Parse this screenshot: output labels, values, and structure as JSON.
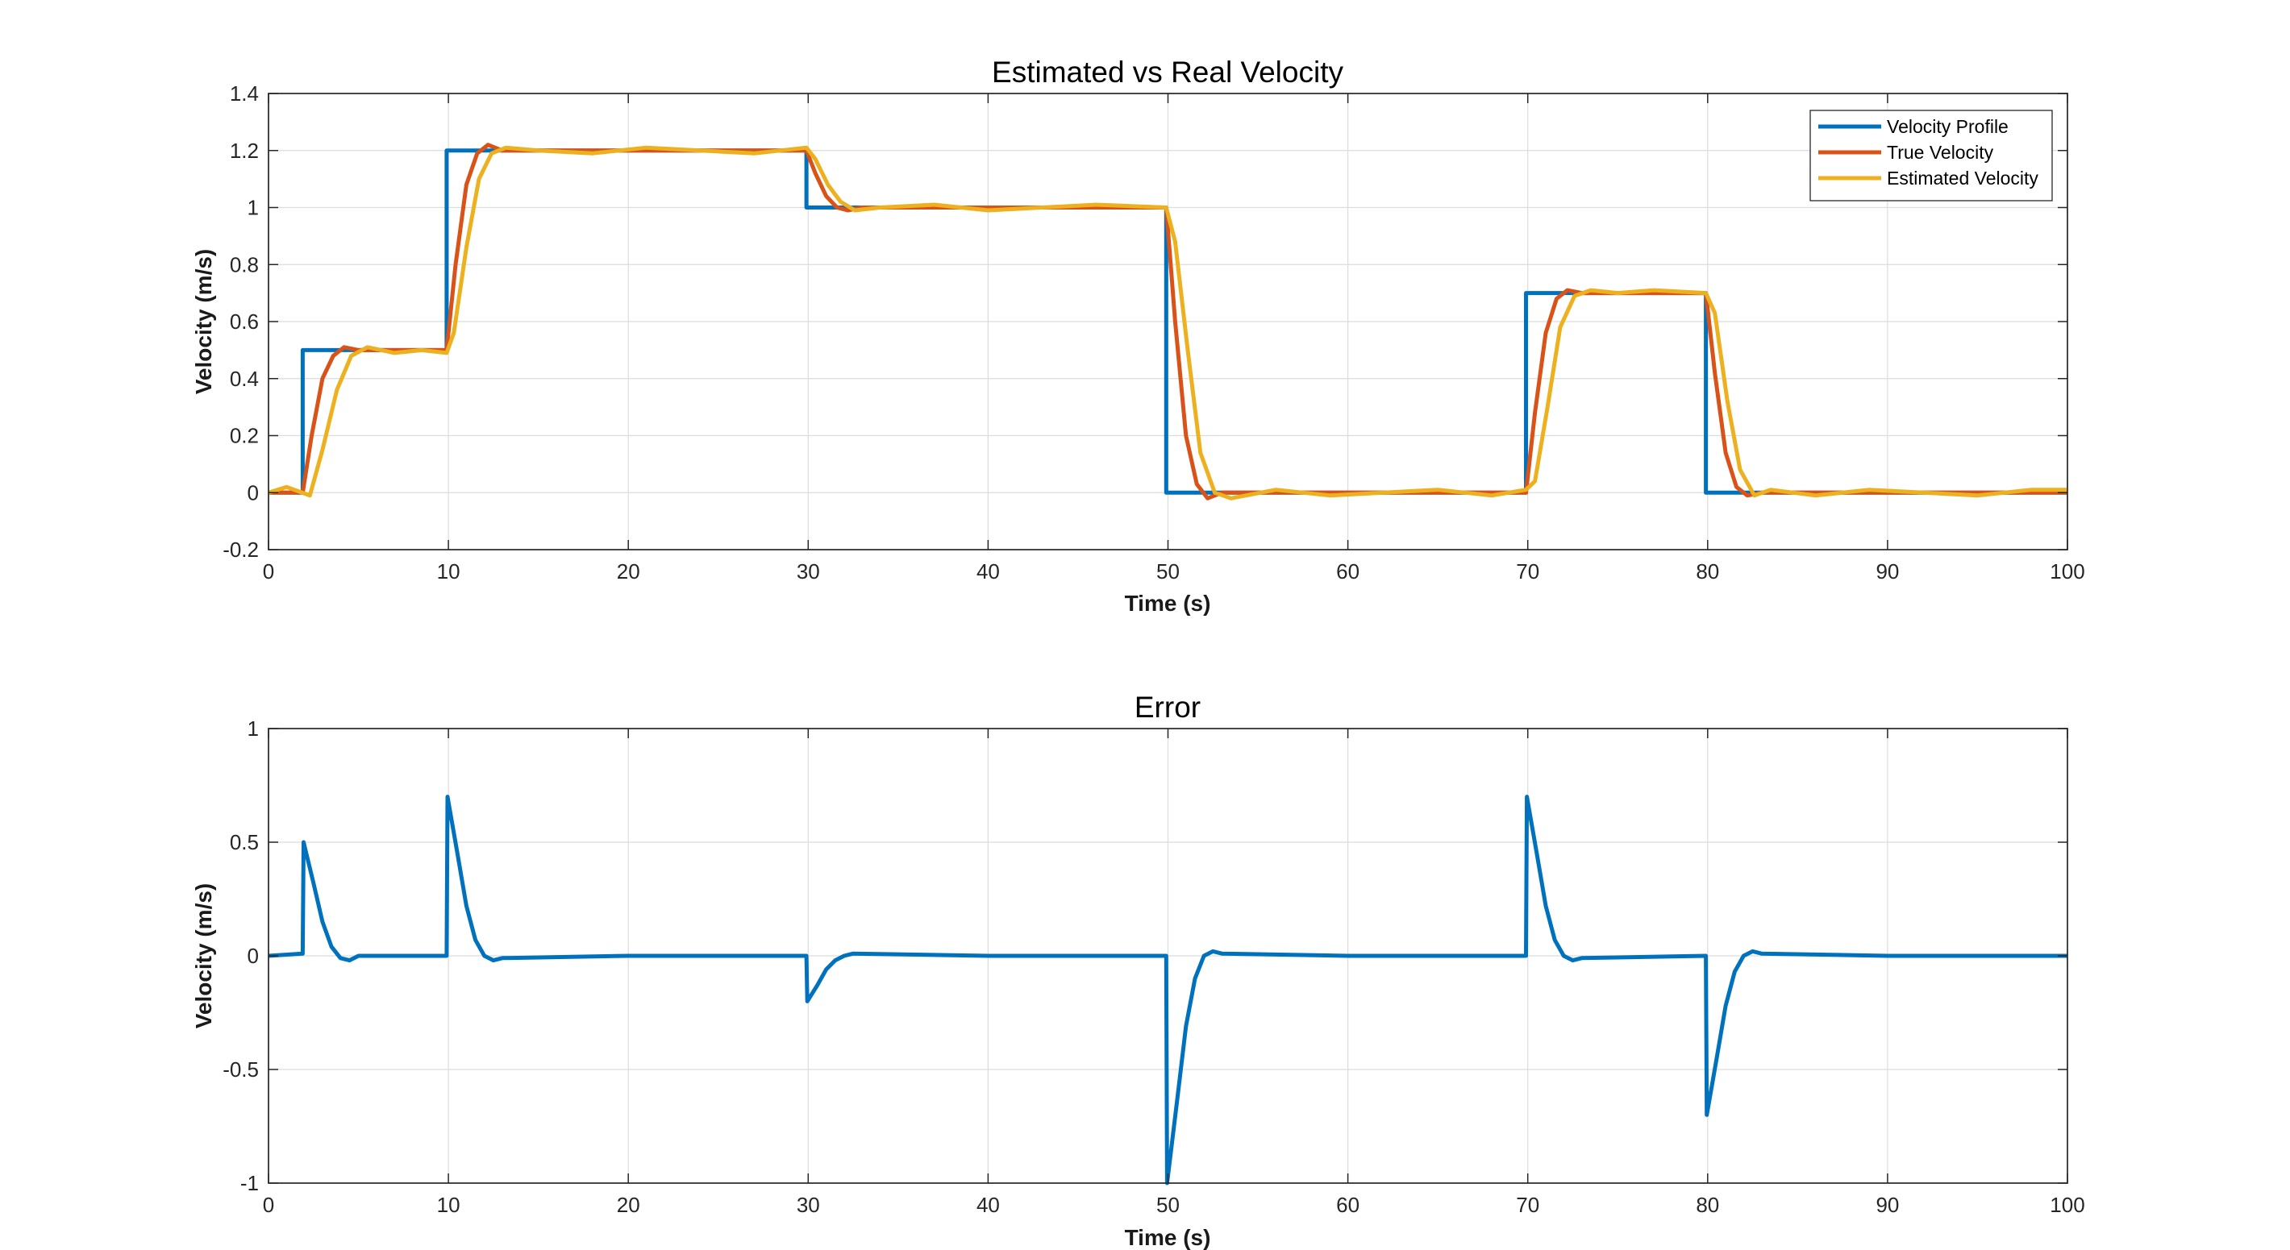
{
  "chart_data": [
    {
      "type": "line",
      "title": "Estimated vs Real Velocity",
      "xlabel": "Time (s)",
      "ylabel": "Velocity (m/s)",
      "xlim": [
        0,
        100
      ],
      "ylim": [
        -0.2,
        1.4
      ],
      "xticks": [
        0,
        10,
        20,
        30,
        40,
        50,
        60,
        70,
        80,
        90,
        100
      ],
      "yticks": [
        -0.2,
        0,
        0.2,
        0.4,
        0.6,
        0.8,
        1,
        1.2,
        1.4
      ],
      "grid": true,
      "legend_position": "top-right",
      "series": [
        {
          "name": "Velocity Profile",
          "color": "#0072BD",
          "x": [
            0,
            1.9,
            1.9,
            9.9,
            9.9,
            29.9,
            29.9,
            49.9,
            49.9,
            69.9,
            69.9,
            79.9,
            79.9,
            100
          ],
          "y": [
            0,
            0,
            0.5,
            0.5,
            1.2,
            1.2,
            1.0,
            1.0,
            0,
            0,
            0.7,
            0.7,
            0,
            0
          ]
        },
        {
          "name": "True Velocity",
          "color": "#D95319",
          "x": [
            0,
            1.9,
            2.4,
            3.0,
            3.6,
            4.2,
            5,
            9.9,
            10.4,
            11.0,
            11.6,
            12.2,
            13,
            29.9,
            30.4,
            31.0,
            31.6,
            32.2,
            33,
            49.9,
            50.4,
            51.0,
            51.6,
            52.2,
            53,
            69.9,
            70.4,
            71.0,
            71.6,
            72.2,
            73,
            79.9,
            80.4,
            81.0,
            81.6,
            82.2,
            83,
            100
          ],
          "y": [
            0,
            0,
            0.2,
            0.4,
            0.48,
            0.51,
            0.5,
            0.5,
            0.8,
            1.08,
            1.19,
            1.22,
            1.2,
            1.2,
            1.12,
            1.04,
            1.0,
            0.99,
            1.0,
            1.0,
            0.6,
            0.2,
            0.03,
            -0.02,
            0,
            0,
            0.28,
            0.56,
            0.68,
            0.71,
            0.7,
            0.7,
            0.42,
            0.14,
            0.02,
            -0.01,
            0,
            0
          ]
        },
        {
          "name": "Estimated Velocity",
          "color": "#EDB120",
          "x": [
            0,
            1,
            2.3,
            3.0,
            3.8,
            4.6,
            5.5,
            7,
            8.5,
            9.9,
            10.3,
            11.0,
            11.7,
            12.4,
            13.2,
            15,
            18,
            21,
            24,
            27,
            29.9,
            30.4,
            31.1,
            31.8,
            32.6,
            34,
            37,
            40,
            43,
            46,
            49.9,
            50.4,
            51.1,
            51.8,
            52.6,
            53.5,
            56,
            59,
            62,
            65,
            68,
            69.9,
            70.4,
            71.1,
            71.8,
            72.6,
            73.5,
            75,
            77,
            79.9,
            80.4,
            81.1,
            81.8,
            82.6,
            83.5,
            86,
            89,
            92,
            95,
            98,
            100
          ],
          "y": [
            0,
            0.02,
            -0.01,
            0.15,
            0.36,
            0.48,
            0.51,
            0.49,
            0.5,
            0.49,
            0.56,
            0.86,
            1.1,
            1.19,
            1.21,
            1.2,
            1.19,
            1.21,
            1.2,
            1.19,
            1.21,
            1.17,
            1.08,
            1.02,
            0.99,
            1.0,
            1.01,
            0.99,
            1.0,
            1.01,
            1.0,
            0.88,
            0.5,
            0.14,
            0.0,
            -0.02,
            0.01,
            -0.01,
            0.0,
            0.01,
            -0.01,
            0.01,
            0.04,
            0.3,
            0.58,
            0.69,
            0.71,
            0.7,
            0.71,
            0.7,
            0.63,
            0.32,
            0.08,
            -0.01,
            0.01,
            -0.01,
            0.01,
            0.0,
            -0.01,
            0.01,
            0.01
          ]
        }
      ]
    },
    {
      "type": "line",
      "title": "Error",
      "xlabel": "Time (s)",
      "ylabel": "Velocity (m/s)",
      "xlim": [
        0,
        100
      ],
      "ylim": [
        -1,
        1
      ],
      "xticks": [
        0,
        10,
        20,
        30,
        40,
        50,
        60,
        70,
        80,
        90,
        100
      ],
      "yticks": [
        -1,
        -0.5,
        0,
        0.5,
        1
      ],
      "grid": true,
      "series": [
        {
          "color": "#0072BD",
          "x": [
            0,
            1.9,
            1.95,
            2.5,
            3.0,
            3.5,
            4.0,
            4.5,
            5.0,
            6,
            9.9,
            9.95,
            10.5,
            11.0,
            11.5,
            12.0,
            12.5,
            13,
            20,
            29.9,
            29.95,
            30.5,
            31.0,
            31.5,
            32.0,
            32.5,
            40,
            49.9,
            49.95,
            50.5,
            51.0,
            51.5,
            52.0,
            52.5,
            53,
            60,
            69.9,
            69.95,
            70.5,
            71.0,
            71.5,
            72.0,
            72.5,
            73,
            79.9,
            79.95,
            80.5,
            81.0,
            81.5,
            82.0,
            82.5,
            83,
            90,
            100
          ],
          "y": [
            0,
            0.01,
            0.5,
            0.32,
            0.15,
            0.04,
            -0.01,
            -0.02,
            0,
            0,
            0,
            0.7,
            0.45,
            0.22,
            0.07,
            0.0,
            -0.02,
            -0.01,
            0,
            0,
            -0.2,
            -0.13,
            -0.06,
            -0.02,
            0.0,
            0.01,
            0,
            0,
            -1.0,
            -0.64,
            -0.31,
            -0.1,
            0.0,
            0.02,
            0.01,
            0,
            0,
            0.7,
            0.45,
            0.22,
            0.07,
            0.0,
            -0.02,
            -0.01,
            0,
            -0.7,
            -0.45,
            -0.22,
            -0.07,
            0.0,
            0.02,
            0.01,
            0,
            0
          ]
        }
      ]
    }
  ]
}
